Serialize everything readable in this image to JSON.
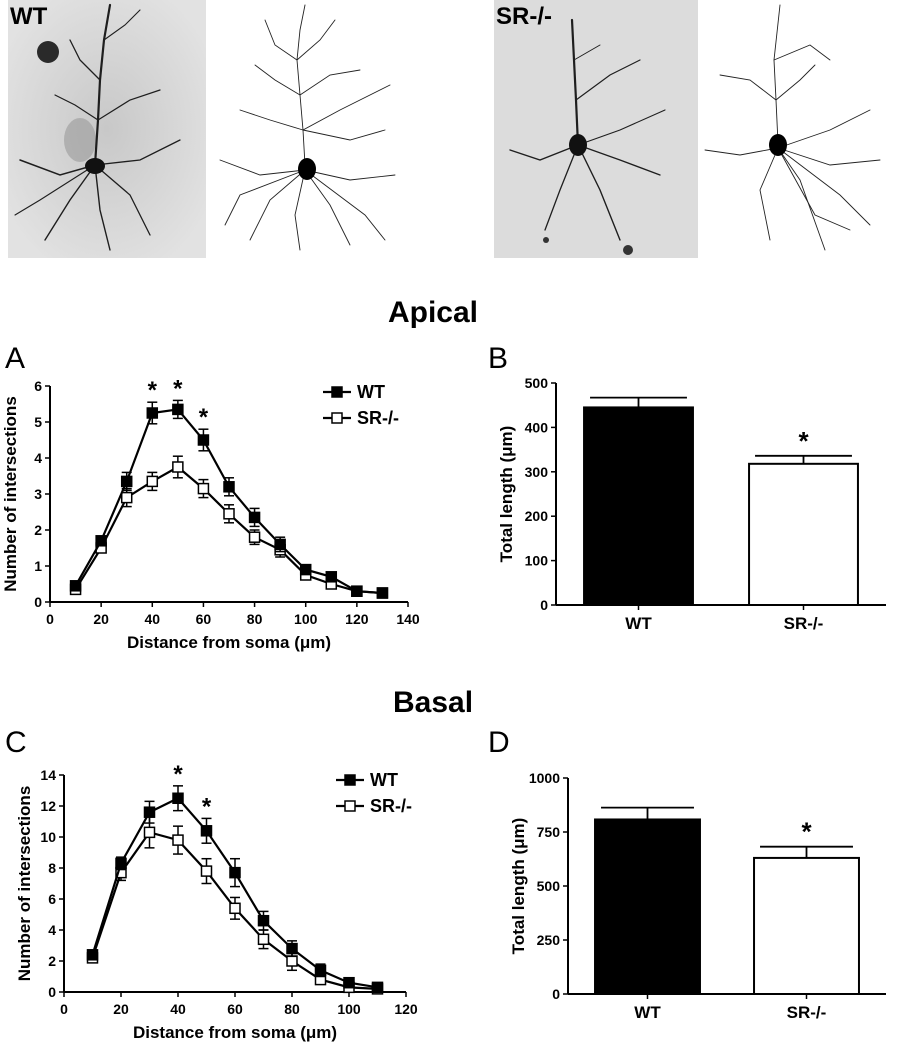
{
  "figure": {
    "micrographs": [
      {
        "label": "WT"
      },
      {
        "label": "SR-/-"
      }
    ],
    "section_titles": {
      "apical": "Apical",
      "basal": "Basal"
    },
    "panel_letters": {
      "A": "A",
      "B": "B",
      "C": "C",
      "D": "D"
    },
    "colors": {
      "wt": "#000000",
      "sr": "#ffffff",
      "stroke": "#000000"
    }
  },
  "chart_data": [
    {
      "panel": "A",
      "type": "line",
      "xlabel": "Distance from soma (μm)",
      "ylabel": "Number of intersections",
      "xlim": [
        0,
        140
      ],
      "ylim": [
        0,
        6
      ],
      "xticks": [
        0,
        20,
        40,
        60,
        80,
        100,
        120,
        140
      ],
      "yticks": [
        0,
        1,
        2,
        3,
        4,
        5,
        6
      ],
      "x": [
        10,
        20,
        30,
        40,
        50,
        60,
        70,
        80,
        90,
        100,
        110,
        120,
        130
      ],
      "series": [
        {
          "name": "WT",
          "marker": "filled-square",
          "values": [
            0.45,
            1.7,
            3.35,
            5.25,
            5.35,
            4.5,
            3.2,
            2.35,
            1.6,
            0.9,
            0.7,
            0.3,
            0.25
          ],
          "errors": [
            0.08,
            0.1,
            0.25,
            0.3,
            0.25,
            0.3,
            0.25,
            0.25,
            0.2,
            0.1,
            0.1,
            0.05,
            0.05
          ]
        },
        {
          "name": "SR-/-",
          "marker": "open-square",
          "values": [
            0.35,
            1.5,
            2.9,
            3.35,
            3.75,
            3.15,
            2.45,
            1.8,
            1.45,
            0.75,
            0.5,
            0.3,
            0.25
          ],
          "errors": [
            0.08,
            0.1,
            0.25,
            0.25,
            0.3,
            0.25,
            0.25,
            0.2,
            0.2,
            0.1,
            0.1,
            0.05,
            0.05
          ]
        }
      ],
      "significance": [
        {
          "x": 40,
          "label": "*"
        },
        {
          "x": 50,
          "label": "*"
        },
        {
          "x": 60,
          "label": "*"
        }
      ],
      "legend": "top-right"
    },
    {
      "panel": "B",
      "type": "bar",
      "ylabel": "Total length (μm)",
      "ylim": [
        0,
        500
      ],
      "yticks": [
        0,
        100,
        200,
        300,
        400,
        500
      ],
      "categories": [
        "WT",
        "SR-/-"
      ],
      "values": [
        445,
        318
      ],
      "errors": [
        22,
        18
      ],
      "significance": [
        {
          "category": "SR-/-",
          "label": "*"
        }
      ]
    },
    {
      "panel": "C",
      "type": "line",
      "xlabel": "Distance from soma (μm)",
      "ylabel": "Number of intersections",
      "xlim": [
        0,
        120
      ],
      "ylim": [
        0,
        14
      ],
      "xticks": [
        0,
        20,
        40,
        60,
        80,
        100,
        120
      ],
      "yticks": [
        0,
        2,
        4,
        6,
        8,
        10,
        12,
        14
      ],
      "x": [
        10,
        20,
        30,
        40,
        50,
        60,
        70,
        80,
        90,
        100,
        110
      ],
      "series": [
        {
          "name": "WT",
          "marker": "filled-square",
          "values": [
            2.4,
            8.3,
            11.6,
            12.5,
            10.4,
            7.7,
            4.6,
            2.8,
            1.4,
            0.6,
            0.3
          ],
          "errors": [
            0.3,
            0.4,
            0.7,
            0.8,
            0.8,
            0.9,
            0.6,
            0.5,
            0.4,
            0.2,
            0.1
          ]
        },
        {
          "name": "SR-/-",
          "marker": "open-square",
          "values": [
            2.2,
            7.7,
            10.3,
            9.8,
            7.8,
            5.4,
            3.4,
            2.0,
            0.8,
            0.3,
            0.2
          ],
          "errors": [
            0.3,
            0.5,
            1.0,
            0.9,
            0.8,
            0.7,
            0.6,
            0.6,
            0.3,
            0.1,
            0.1
          ]
        }
      ],
      "significance": [
        {
          "x": 40,
          "label": "*"
        },
        {
          "x": 50,
          "label": "*"
        }
      ],
      "legend": "top-right"
    },
    {
      "panel": "D",
      "type": "bar",
      "ylabel": "Total length (μm)",
      "ylim": [
        0,
        1000
      ],
      "yticks": [
        0,
        250,
        500,
        750,
        1000
      ],
      "categories": [
        "WT",
        "SR-/-"
      ],
      "values": [
        808,
        630
      ],
      "errors": [
        55,
        52
      ],
      "significance": [
        {
          "category": "SR-/-",
          "label": "*"
        }
      ]
    }
  ]
}
